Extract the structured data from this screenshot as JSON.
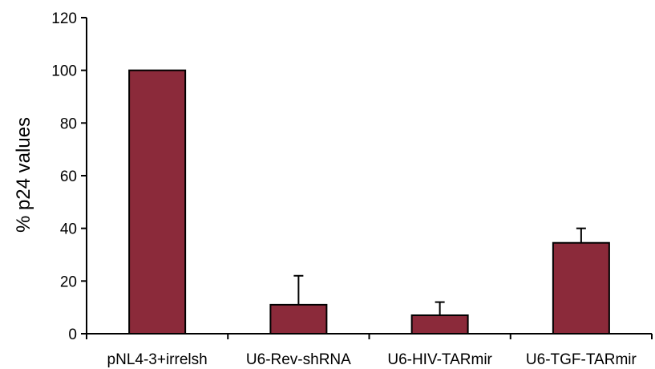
{
  "chart_data": {
    "type": "bar",
    "title": "",
    "xlabel": "",
    "ylabel": "% p24 values",
    "ylim": [
      0,
      120
    ],
    "yticks": [
      0,
      20,
      40,
      60,
      80,
      100,
      120
    ],
    "grid": false,
    "categories": [
      "pNL4-3+irrelsh",
      "U6-Rev-shRNA",
      "U6-HIV-TARmir",
      "U6-TGF-TARmir"
    ],
    "series": [
      {
        "values": [
          100,
          11,
          7,
          34.5
        ],
        "errors": [
          0,
          11,
          5,
          5.5
        ],
        "color": "#8b2a3a"
      }
    ]
  }
}
